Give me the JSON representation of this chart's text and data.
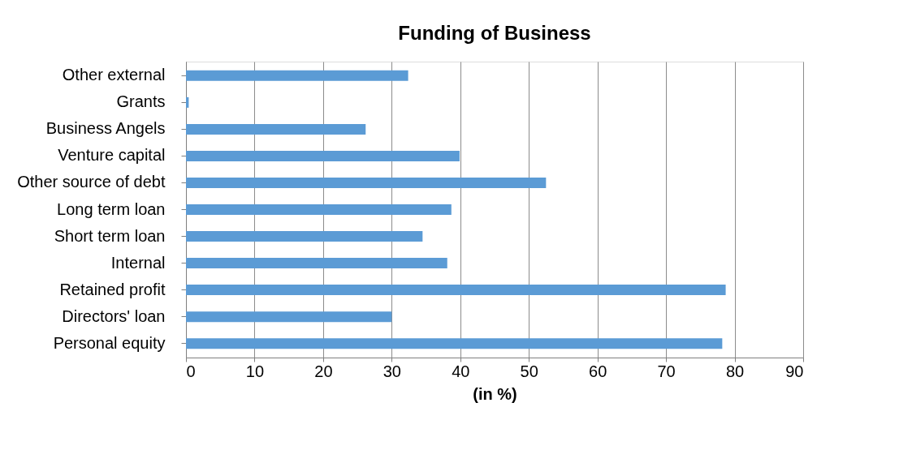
{
  "chart_data": {
    "type": "bar",
    "orientation": "horizontal",
    "title": "Funding of Business",
    "xlabel": "(in %)",
    "categories": [
      "Other external",
      "Grants",
      "Business Angels",
      "Venture capital",
      "Other source of debt",
      "Long term loan",
      "Short term loan",
      "Internal",
      "Retained profit",
      "Directors' loan",
      "Personal equity"
    ],
    "values": [
      32.4,
      0.4,
      26.2,
      39.9,
      52.5,
      38.7,
      34.5,
      38.1,
      78.7,
      30.0,
      78.2
    ],
    "color": "#5b9bd5",
    "xlim": [
      0,
      90
    ],
    "xticks": [
      0,
      10,
      20,
      30,
      40,
      50,
      60,
      70,
      80,
      90
    ],
    "grid": "x"
  }
}
